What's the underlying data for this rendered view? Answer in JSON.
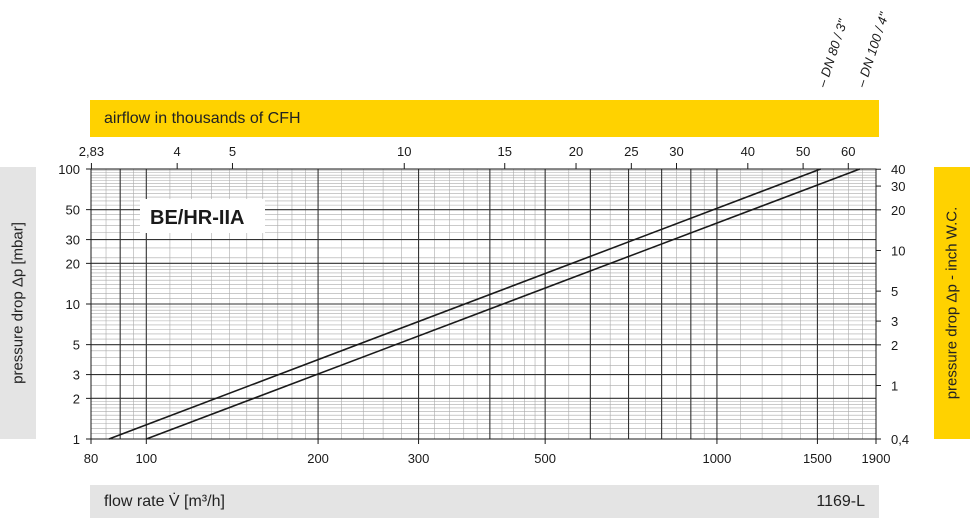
{
  "top_band_label": "airflow in thousands of CFH",
  "bottom_band_label": "flow rate V̇ [m³/h]",
  "figure_code": "1169-L",
  "left_axis_title": "pressure drop Δp [mbar]",
  "right_axis_title": "pressure drop Δp - inch W.C.",
  "colors": {
    "yellow": "#ffd200",
    "gray": "#e4e4e4",
    "line": "#1a1a1a"
  },
  "chart_data": {
    "type": "line",
    "title": "BE/HR-IIA",
    "x_scale": "log",
    "y_scale": "log",
    "xlim": [
      80,
      1900
    ],
    "ylim": [
      1,
      100
    ],
    "x_ticks": [
      {
        "v": 80,
        "label": "80"
      },
      {
        "v": 100,
        "label": "100"
      },
      {
        "v": 200,
        "label": "200"
      },
      {
        "v": 300,
        "label": "300"
      },
      {
        "v": 500,
        "label": "500"
      },
      {
        "v": 1000,
        "label": "1000"
      },
      {
        "v": 1500,
        "label": "1500"
      },
      {
        "v": 1900,
        "label": "1900"
      }
    ],
    "y_ticks": [
      {
        "v": 1,
        "label": "1"
      },
      {
        "v": 2,
        "label": "2"
      },
      {
        "v": 3,
        "label": "3"
      },
      {
        "v": 5,
        "label": "5"
      },
      {
        "v": 10,
        "label": "10"
      },
      {
        "v": 20,
        "label": "20"
      },
      {
        "v": 30,
        "label": "30"
      },
      {
        "v": 50,
        "label": "50"
      },
      {
        "v": 100,
        "label": "100"
      }
    ],
    "top_axis": {
      "label": "airflow in thousands of CFH",
      "ticks": [
        {
          "v": 2.83,
          "label": "2,83"
        },
        {
          "v": 4,
          "label": "4"
        },
        {
          "v": 5,
          "label": "5"
        },
        {
          "v": 10,
          "label": "10"
        },
        {
          "v": 15,
          "label": "15"
        },
        {
          "v": 20,
          "label": "20"
        },
        {
          "v": 25,
          "label": "25"
        },
        {
          "v": 30,
          "label": "30"
        },
        {
          "v": 40,
          "label": "40"
        },
        {
          "v": 50,
          "label": "50"
        },
        {
          "v": 60,
          "label": "60"
        }
      ]
    },
    "right_axis": {
      "label": "pressure drop Δp - inch W.C.",
      "ticks": [
        {
          "v": 0.4,
          "label": "0,4"
        },
        {
          "v": 1,
          "label": "1"
        },
        {
          "v": 2,
          "label": "2"
        },
        {
          "v": 3,
          "label": "3"
        },
        {
          "v": 5,
          "label": "5"
        },
        {
          "v": 10,
          "label": "10"
        },
        {
          "v": 20,
          "label": "20"
        },
        {
          "v": 30,
          "label": "30"
        },
        {
          "v": 40,
          "label": "40"
        }
      ]
    },
    "series": [
      {
        "name": "DN 80 / 3\"",
        "points": [
          [
            86,
            1
          ],
          [
            1520,
            100
          ]
        ]
      },
      {
        "name": "DN 100 / 4\"",
        "points": [
          [
            100,
            1
          ],
          [
            1780,
            100
          ]
        ]
      }
    ]
  }
}
